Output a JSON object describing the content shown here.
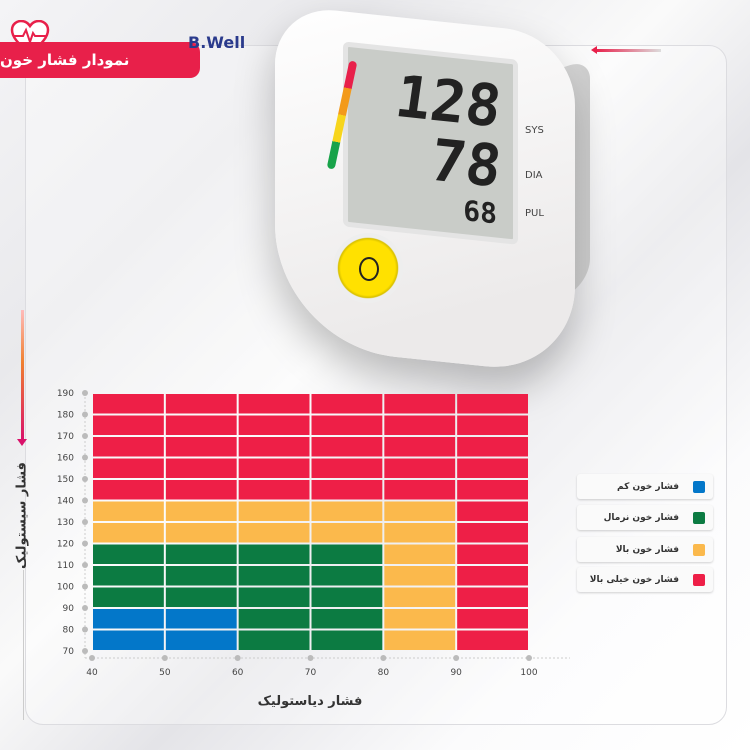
{
  "header": {
    "title": "نمودار فشار خون"
  },
  "device": {
    "brand": "B.Well",
    "sys_value": "128",
    "dia_value": "78",
    "pul_value": "68",
    "sys_label": "SYS",
    "dia_label": "DIA",
    "pul_label": "PUL"
  },
  "colors": {
    "low": "#0377c9",
    "normal": "#0c7b42",
    "high": "#fbb94c",
    "very_high": "#ee1f47",
    "accent": "#e8204a"
  },
  "chart_data": {
    "type": "heatmap",
    "xlabel": "فشار دیاستولیک",
    "ylabel": "فشار سیستولیک",
    "xlim": [
      40,
      100
    ],
    "ylim": [
      70,
      190
    ],
    "x_ticks": [
      40,
      50,
      60,
      70,
      80,
      90,
      100
    ],
    "y_ticks": [
      70,
      80,
      90,
      100,
      110,
      120,
      130,
      140,
      150,
      160,
      170,
      180,
      190
    ],
    "grid": true,
    "legend_position": "right",
    "categories": [
      {
        "key": "low",
        "name": "فشار خون کم",
        "color": "#0377c9"
      },
      {
        "key": "normal",
        "name": "فشار خون نرمال",
        "color": "#0c7b42"
      },
      {
        "key": "high",
        "name": "فشار خون بالا",
        "color": "#fbb94c"
      },
      {
        "key": "very_high",
        "name": "فشار خون خیلی بالا",
        "color": "#ee1f47"
      }
    ],
    "regions": [
      {
        "systolic": [
          70,
          90
        ],
        "diastolic": [
          40,
          60
        ],
        "category": "low"
      },
      {
        "systolic": [
          70,
          90
        ],
        "diastolic": [
          60,
          80
        ],
        "category": "normal"
      },
      {
        "systolic": [
          90,
          120
        ],
        "diastolic": [
          40,
          80
        ],
        "category": "normal"
      },
      {
        "systolic": [
          70,
          120
        ],
        "diastolic": [
          80,
          90
        ],
        "category": "high"
      },
      {
        "systolic": [
          120,
          140
        ],
        "diastolic": [
          40,
          90
        ],
        "category": "high"
      },
      {
        "systolic": [
          70,
          140
        ],
        "diastolic": [
          90,
          100
        ],
        "category": "very_high"
      },
      {
        "systolic": [
          140,
          190
        ],
        "diastolic": [
          40,
          100
        ],
        "category": "very_high"
      }
    ]
  }
}
